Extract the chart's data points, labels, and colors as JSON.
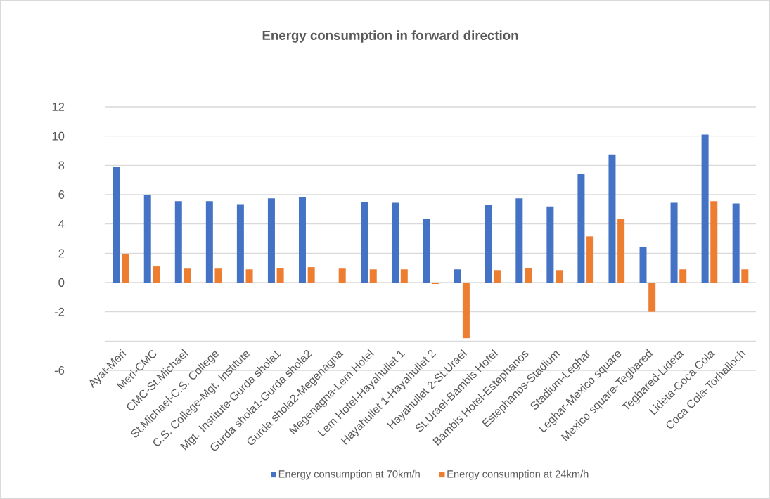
{
  "chart_data": {
    "type": "bar",
    "title": "Energy consumption  in forward direction",
    "categories": [
      "Ayat-Meri",
      "Meri-CMC",
      "CMC-St.Michael",
      "St.Michael-C.S. College",
      "C.S. College-Mgt. Institute",
      "Mgt. Institute-Gurda shola1",
      "Gurda shola1-Gurda shola2",
      "Gurda shola2-Megenagna",
      "Megenagna-Lem Hotel",
      "Lem Hotel-Hayahullet 1",
      "Hayahullet 1-Hayahullet 2",
      "Hayahullet 2-St.Urael",
      "St.Urael-Bambis Hotel",
      "Bambis Hotel-Estephanos",
      "Estephanos-Stadium",
      "Stadium-Leghar",
      "Leghar-Mexico square",
      "Mexico square-Tegbared",
      "Tegbared-Lideta",
      "Lideta-Coca Cola",
      "Coca Cola-Torhailoch"
    ],
    "series": [
      {
        "name": "Energy consumption at 70km/h",
        "color": "#4472c4",
        "values": [
          7.9,
          5.95,
          5.55,
          5.55,
          5.35,
          5.75,
          5.85,
          null,
          5.5,
          5.45,
          4.35,
          0.9,
          5.3,
          5.75,
          5.2,
          7.4,
          8.75,
          2.45,
          5.45,
          10.1,
          5.4
        ]
      },
      {
        "name": "Energy consumption at 24km/h",
        "color": "#ed7d31",
        "values": [
          1.95,
          1.1,
          0.95,
          0.95,
          0.9,
          1.0,
          1.05,
          0.95,
          0.9,
          0.9,
          -0.1,
          -3.8,
          0.85,
          1.0,
          0.85,
          3.15,
          4.35,
          -2.0,
          0.9,
          5.55,
          0.9
        ]
      }
    ],
    "ylim": [
      -6,
      12
    ],
    "yticks": [
      -6,
      {
        "value": -4,
        "label": null
      },
      -2,
      0,
      2,
      4,
      6,
      8,
      10,
      12
    ],
    "grid": "y",
    "legend": "bottom"
  }
}
